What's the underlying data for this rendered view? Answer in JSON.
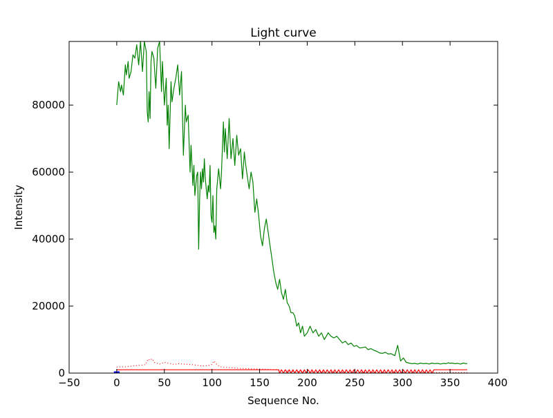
{
  "chart_data": {
    "type": "line",
    "title": "Light curve",
    "xlabel": "Sequence No.",
    "ylabel": "Intensity",
    "xlim": [
      -50,
      400
    ],
    "ylim": [
      0,
      99000
    ],
    "xticks": [
      -50,
      0,
      50,
      100,
      150,
      200,
      250,
      300,
      350,
      400
    ],
    "xtick_labels": [
      "−50",
      "0",
      "50",
      "100",
      "150",
      "200",
      "250",
      "300",
      "350",
      "400"
    ],
    "yticks": [
      0,
      20000,
      40000,
      60000,
      80000
    ],
    "ytick_labels": [
      "0",
      "20000",
      "40000",
      "60000",
      "80000"
    ],
    "grid": false,
    "legend": "none",
    "series": [
      {
        "style": "solid",
        "color": "#008000",
        "x": [
          0,
          2,
          4,
          5,
          7,
          9,
          10,
          12,
          13,
          15,
          17,
          19,
          21,
          23,
          25,
          27,
          29,
          31,
          32,
          33,
          34,
          35,
          36,
          37,
          39,
          41,
          43,
          45,
          47,
          48,
          50,
          52,
          53,
          54,
          55,
          57,
          58,
          60,
          62,
          64,
          66,
          68,
          70,
          72,
          73,
          75,
          77,
          78,
          80,
          81,
          82,
          84,
          85,
          86,
          87,
          88,
          89,
          90,
          91,
          92,
          93,
          95,
          96,
          97,
          98,
          99,
          100,
          101,
          102,
          103,
          104,
          105,
          107,
          109,
          110,
          112,
          113,
          114,
          116,
          118,
          120,
          122,
          124,
          126,
          128,
          130,
          132,
          134,
          135,
          137,
          139,
          141,
          143,
          145,
          147,
          149,
          151,
          153,
          155,
          157,
          159,
          160,
          162,
          163,
          165,
          167,
          169,
          171,
          173,
          175,
          177,
          179,
          181,
          183,
          185,
          187,
          189,
          191,
          193,
          195,
          197,
          200,
          203,
          206,
          209,
          212,
          215,
          218,
          220,
          222,
          225,
          228,
          231,
          234,
          237,
          240,
          243,
          246,
          249,
          252,
          255,
          258,
          261,
          264,
          267,
          270,
          273,
          276,
          279,
          282,
          285,
          288,
          290,
          292,
          295,
          298,
          301,
          304,
          307,
          310,
          313,
          316,
          319,
          322,
          325,
          328,
          331,
          334,
          337,
          340,
          343,
          346,
          348,
          350,
          352,
          355,
          358,
          361,
          364,
          367,
          368
        ],
        "y": [
          80000,
          87000,
          84000,
          86000,
          83000,
          92000,
          89000,
          93000,
          88000,
          90000,
          95000,
          94000,
          98000,
          92000,
          100000,
          90000,
          99000,
          96000,
          78000,
          75000,
          84000,
          76000,
          93000,
          96000,
          94000,
          85000,
          97000,
          99000,
          84000,
          93000,
          80000,
          88000,
          74000,
          80000,
          67000,
          87000,
          81000,
          85000,
          88000,
          92000,
          83000,
          90000,
          65000,
          80000,
          75000,
          77000,
          60000,
          68000,
          56000,
          62000,
          53000,
          59000,
          60000,
          37000,
          52000,
          60000,
          55000,
          61000,
          57000,
          64000,
          58000,
          52000,
          56000,
          54000,
          62000,
          47000,
          45000,
          53000,
          42000,
          44000,
          40000,
          55000,
          61000,
          55000,
          60000,
          75000,
          66000,
          73000,
          64000,
          76000,
          64000,
          70000,
          62000,
          71000,
          65000,
          67000,
          58000,
          66000,
          63000,
          59000,
          55000,
          60000,
          57000,
          48000,
          52000,
          47000,
          41000,
          38000,
          43000,
          46000,
          42000,
          40000,
          36000,
          34000,
          30000,
          27000,
          25000,
          28000,
          24000,
          22000,
          25000,
          21000,
          20000,
          18000,
          18000,
          17000,
          14000,
          15000,
          12000,
          14000,
          11000,
          12000,
          14000,
          12000,
          13000,
          11000,
          12000,
          10000,
          11000,
          12000,
          11000,
          10500,
          11000,
          10000,
          9000,
          9500,
          8500,
          9000,
          8000,
          8200,
          7500,
          7600,
          7800,
          7000,
          7300,
          6800,
          6500,
          6000,
          5900,
          6200,
          5700,
          5800,
          5500,
          5200,
          8300,
          3600,
          4500,
          3200,
          3000,
          2800,
          2900,
          2700,
          3000,
          2800,
          2900,
          2700,
          3000,
          2800,
          2900,
          2700,
          2900,
          2800,
          3100,
          2900,
          3000,
          2800,
          2900,
          2700,
          3000,
          2800,
          2900
        ]
      },
      {
        "style": "dotted",
        "color": "#ff0000",
        "x": [
          0,
          10,
          20,
          30,
          33,
          35,
          37,
          40,
          45,
          50,
          55,
          60,
          65,
          70,
          75,
          80,
          85,
          90,
          95,
          100,
          102,
          104,
          106,
          110,
          120,
          130,
          140,
          150,
          160,
          170,
          180,
          190,
          200,
          210,
          220,
          230,
          240,
          250,
          260,
          270,
          280,
          290,
          300,
          310,
          320,
          330,
          340,
          350,
          360,
          368
        ],
        "y": [
          1800,
          1900,
          2200,
          2500,
          4200,
          3800,
          4300,
          3100,
          2700,
          3200,
          2900,
          2600,
          2800,
          2700,
          2600,
          2500,
          2300,
          2100,
          2200,
          2600,
          3600,
          2900,
          2300,
          1800,
          1600,
          1400,
          1300,
          1200,
          1100,
          900,
          600,
          500,
          400,
          350,
          300,
          280,
          260,
          240,
          230,
          220,
          210,
          200,
          190,
          185,
          180,
          175,
          170,
          165,
          160,
          155
        ]
      },
      {
        "style": "solid",
        "color": "#ff0000",
        "x": [
          0,
          170,
          171,
          173,
          175,
          177,
          179,
          181,
          183,
          185,
          187,
          189,
          191,
          193,
          195,
          197,
          199,
          201,
          203,
          205,
          207,
          209,
          211,
          213,
          215,
          217,
          219,
          221,
          223,
          225,
          227,
          229,
          231,
          233,
          235,
          237,
          239,
          241,
          243,
          245,
          247,
          249,
          251,
          253,
          255,
          257,
          259,
          261,
          263,
          265,
          267,
          269,
          271,
          273,
          275,
          277,
          279,
          281,
          283,
          285,
          287,
          289,
          291,
          293,
          295,
          297,
          299,
          301,
          303,
          305,
          307,
          309,
          311,
          313,
          315,
          317,
          319,
          321,
          323,
          325,
          327,
          329,
          331,
          333,
          335,
          368
        ],
        "y": [
          1000,
          1000,
          0,
          1000,
          0,
          1000,
          0,
          1000,
          0,
          1000,
          0,
          1000,
          0,
          1000,
          0,
          1000,
          0,
          1000,
          0,
          1000,
          0,
          1000,
          0,
          1000,
          0,
          1000,
          0,
          1000,
          0,
          1000,
          0,
          1000,
          0,
          1000,
          0,
          1000,
          0,
          1000,
          0,
          1000,
          0,
          1000,
          0,
          1000,
          0,
          1000,
          0,
          1000,
          0,
          1000,
          0,
          1000,
          0,
          1000,
          0,
          1000,
          0,
          1000,
          0,
          1000,
          0,
          1000,
          0,
          1000,
          0,
          1000,
          0,
          1000,
          0,
          1000,
          0,
          1000,
          0,
          1000,
          0,
          1000,
          0,
          1000,
          0,
          1000,
          0,
          1000,
          0,
          1000,
          1000,
          1000
        ]
      },
      {
        "style": "solid",
        "color": "#0000ff",
        "x": [
          -3,
          3
        ],
        "y": [
          200,
          200
        ]
      }
    ]
  }
}
